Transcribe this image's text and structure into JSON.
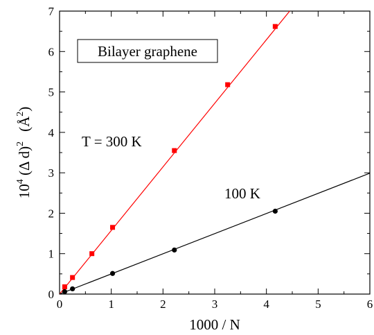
{
  "chart_data": {
    "type": "scatter",
    "xlabel": "1000 / N",
    "ylabel": {
      "base": "10",
      "exp1": "4",
      "mid": " (Δ d)",
      "exp2": "2",
      "unit": "(Å",
      "exp3": "2",
      "close": ")"
    },
    "xlim": [
      0,
      6
    ],
    "ylim": [
      0,
      7
    ],
    "xticks": [
      "0",
      "1",
      "2",
      "3",
      "4",
      "5",
      "6"
    ],
    "yticks": [
      "0",
      "1",
      "2",
      "3",
      "4",
      "5",
      "6",
      "7"
    ],
    "grid": false,
    "annotations": {
      "box": "Bilayer  graphene",
      "label_300": "T = 300 K",
      "label_100": "100 K"
    },
    "series": [
      {
        "name": "T = 300 K",
        "color": "#ff0000",
        "marker": "square",
        "x": [
          0.1,
          0.25,
          0.625,
          1.025,
          2.22,
          3.25,
          4.17
        ],
        "y": [
          0.18,
          0.41,
          1.0,
          1.65,
          3.55,
          5.18,
          6.62
        ],
        "fit": {
          "x": [
            0.0,
            4.45
          ],
          "y": [
            0.0,
            7.0
          ]
        }
      },
      {
        "name": "100 K",
        "color": "#000000",
        "marker": "circle",
        "x": [
          0.1,
          0.25,
          1.025,
          2.22,
          4.17
        ],
        "y": [
          0.06,
          0.13,
          0.51,
          1.09,
          2.05
        ],
        "fit": {
          "x": [
            0.0,
            6.0
          ],
          "y": [
            0.0,
            2.99
          ]
        }
      }
    ]
  }
}
